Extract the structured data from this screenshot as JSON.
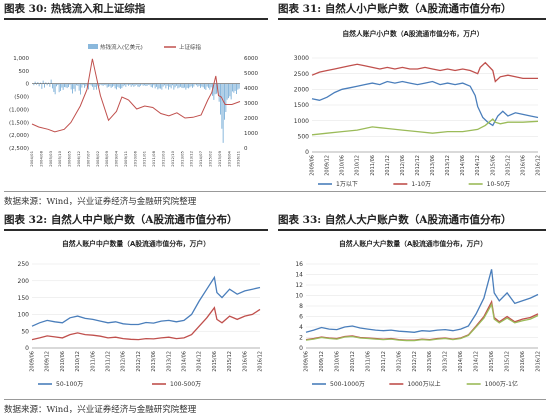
{
  "figures": [
    {
      "label": "图表 30:",
      "title": "热钱流入和上证综指"
    },
    {
      "label": "图表 31:",
      "title": "自然人小户账户数（A股流通市值分布）"
    },
    {
      "label": "图表 32:",
      "title": "自然人中户账户数（A股流通市值分布）"
    },
    {
      "label": "图表 33:",
      "title": "自然人大户账户数（A股流通市值分布）"
    }
  ],
  "sources": [
    "数据来源：Wind，兴业证券经济与金融研究院整理",
    "数据来源：Wind，兴业证券经济与金融研究院整理"
  ],
  "chart_data": [
    {
      "type": "bar",
      "title": "",
      "legend_position": "top-center",
      "y_left_ticks": [
        "1,000",
        "500",
        "0",
        "(500)",
        "(1,000)",
        "(1,500)",
        "(2,000)",
        "(2,500)"
      ],
      "y_right_ticks": [
        "6000",
        "5000",
        "4000",
        "3000",
        "2000",
        "1000",
        "0"
      ],
      "ylim_left": [
        -2500,
        1000
      ],
      "ylim_right": [
        0,
        6000
      ],
      "x_start": "2004/01",
      "x_end": "2016/12",
      "x_ticks": [
        "2004/01",
        "2004/08",
        "2005/03",
        "2005/10",
        "2006/05",
        "2006/12",
        "2007/07",
        "2008/02",
        "2008/09",
        "2009/04",
        "2009/11",
        "2010/06",
        "2011/01",
        "2011/08",
        "2012/03",
        "2012/10",
        "2013/05",
        "2013/12",
        "2014/07",
        "2015/02",
        "2015/09",
        "2016/04",
        "2016/11"
      ],
      "series": [
        {
          "name": "热钱流入(亿美元)",
          "kind": "bar",
          "axis": "left",
          "color": "#8ab8dc",
          "values": [
            0,
            -60,
            80,
            -40,
            60,
            -100,
            40,
            -200,
            120,
            -150,
            50,
            -60,
            40,
            -120,
            160,
            -180,
            -320,
            -410,
            -100,
            -50,
            -330,
            -280,
            -150,
            -240,
            -130,
            -140,
            -170,
            -130,
            -40,
            -220,
            -380,
            -200,
            -300,
            -60,
            -80,
            -270,
            -420,
            -150,
            -50,
            -160,
            -100,
            -60,
            -220,
            -30,
            -70,
            -120,
            -240,
            -130,
            -230,
            -70,
            -100,
            -30,
            -60,
            -80,
            -40,
            -60,
            -150,
            -120,
            -100,
            -160,
            -120,
            -80,
            -180,
            -220,
            -120,
            -160,
            -200,
            -170,
            -100,
            -60,
            -120,
            -40,
            -80,
            -50,
            -120,
            -60,
            -120,
            -80,
            -40,
            -110,
            -130,
            -80,
            -40,
            -80,
            -60,
            -90,
            -80,
            -40,
            -60,
            -130,
            -150,
            -60,
            -180,
            -120,
            -220,
            -180,
            -190,
            -230,
            -110,
            -60,
            -180,
            -80,
            -230,
            -120,
            -180,
            -60,
            -230,
            -140,
            -80,
            -180,
            -150,
            -120,
            -160,
            -170,
            -150,
            -230,
            -160,
            -180,
            -140,
            -100,
            -160,
            -110,
            -30,
            -60,
            -120,
            -80,
            -160,
            -110,
            -140,
            -200,
            -240,
            -110,
            -160,
            -230,
            -140,
            -470,
            -630,
            -410,
            -390,
            -350,
            -700,
            -1200,
            -1750,
            -2300,
            -1400,
            -1100,
            -620,
            -560,
            -490,
            -610,
            -300,
            -350,
            -280,
            -400,
            -230,
            -190
          ]
        },
        {
          "name": "上证综指",
          "kind": "line",
          "axis": "right",
          "color": "#c0504d",
          "x": [
            "2004/01",
            "2004/06",
            "2005/01",
            "2005/06",
            "2006/01",
            "2006/06",
            "2007/01",
            "2007/06",
            "2007/10",
            "2008/04",
            "2008/10",
            "2009/04",
            "2009/08",
            "2010/01",
            "2010/07",
            "2011/01",
            "2011/07",
            "2012/01",
            "2012/07",
            "2013/01",
            "2013/07",
            "2014/01",
            "2014/07",
            "2014/12",
            "2015/03",
            "2015/06",
            "2015/08",
            "2015/10",
            "2016/01",
            "2016/06",
            "2016/12"
          ],
          "values": [
            1600,
            1400,
            1250,
            1080,
            1250,
            1700,
            2800,
            3900,
            5950,
            3500,
            1850,
            2450,
            3400,
            3200,
            2600,
            2800,
            2700,
            2300,
            2150,
            2350,
            2000,
            2050,
            2200,
            3200,
            3700,
            4800,
            3500,
            3400,
            2900,
            2900,
            3100
          ]
        }
      ]
    },
    {
      "type": "line",
      "title": "自然人账户小户数（A股流通市值分布，万户）",
      "legend_position": "bottom",
      "ylim": [
        0,
        3000
      ],
      "y_ticks": [
        "3000",
        "2500",
        "2000",
        "1500",
        "1000",
        "500",
        "0"
      ],
      "x_start": "2009/06",
      "x_end": "2016/12",
      "x_ticks": [
        "2009/06",
        "2009/12",
        "2010/06",
        "2010/12",
        "2011/06",
        "2011/12",
        "2012/06",
        "2012/12",
        "2013/06",
        "2013/12",
        "2014/06",
        "2014/12",
        "2015/06",
        "2015/12",
        "2016/06",
        "2016/12"
      ],
      "series": [
        {
          "name": "1万以下",
          "color": "#4a7ebb",
          "x": [
            "2009/06",
            "2009/09",
            "2009/12",
            "2010/03",
            "2010/06",
            "2010/09",
            "2010/12",
            "2011/03",
            "2011/06",
            "2011/09",
            "2011/12",
            "2012/03",
            "2012/06",
            "2012/09",
            "2012/12",
            "2013/03",
            "2013/06",
            "2013/09",
            "2013/12",
            "2014/03",
            "2014/06",
            "2014/09",
            "2014/11",
            "2014/12",
            "2015/02",
            "2015/04",
            "2015/06",
            "2015/08",
            "2015/10",
            "2015/12",
            "2016/03",
            "2016/06",
            "2016/09",
            "2016/12"
          ],
          "values": [
            1700,
            1650,
            1750,
            1900,
            2000,
            2050,
            2100,
            2150,
            2200,
            2150,
            2250,
            2200,
            2250,
            2200,
            2150,
            2200,
            2250,
            2150,
            2200,
            2150,
            2200,
            2100,
            1800,
            1450,
            1100,
            950,
            850,
            1150,
            1300,
            1150,
            1250,
            1200,
            1150,
            1100
          ]
        },
        {
          "name": "1-10万",
          "color": "#c0504d",
          "x": [
            "2009/06",
            "2009/09",
            "2009/12",
            "2010/03",
            "2010/06",
            "2010/09",
            "2010/12",
            "2011/03",
            "2011/06",
            "2011/09",
            "2011/12",
            "2012/03",
            "2012/06",
            "2012/09",
            "2012/12",
            "2013/03",
            "2013/06",
            "2013/09",
            "2013/12",
            "2014/03",
            "2014/06",
            "2014/09",
            "2014/12",
            "2015/01",
            "2015/03",
            "2015/06",
            "2015/07",
            "2015/09",
            "2015/12",
            "2016/03",
            "2016/06",
            "2016/09",
            "2016/12"
          ],
          "values": [
            2450,
            2550,
            2600,
            2650,
            2700,
            2750,
            2800,
            2750,
            2700,
            2650,
            2700,
            2650,
            2700,
            2650,
            2650,
            2700,
            2650,
            2600,
            2650,
            2600,
            2650,
            2600,
            2500,
            2700,
            2850,
            2600,
            2250,
            2400,
            2450,
            2400,
            2350,
            2350,
            2350
          ]
        },
        {
          "name": "10-50万",
          "color": "#9bbb59",
          "x": [
            "2009/06",
            "2009/12",
            "2010/06",
            "2010/12",
            "2011/06",
            "2011/12",
            "2012/06",
            "2012/12",
            "2013/06",
            "2013/12",
            "2014/06",
            "2014/12",
            "2015/03",
            "2015/06",
            "2015/07",
            "2015/09",
            "2015/12",
            "2016/06",
            "2016/12"
          ],
          "values": [
            550,
            600,
            650,
            700,
            800,
            750,
            700,
            650,
            600,
            650,
            650,
            720,
            850,
            1050,
            950,
            900,
            950,
            950,
            980
          ]
        }
      ]
    },
    {
      "type": "line",
      "title": "自然人账户中户数量（A股流通市值分布，万户）",
      "legend_position": "bottom",
      "ylim": [
        0,
        250
      ],
      "y_ticks": [
        "250",
        "200",
        "150",
        "100",
        "50",
        "0"
      ],
      "x_start": "2009/06",
      "x_end": "2016/12",
      "x_ticks": [
        "2009/06",
        "2009/12",
        "2010/06",
        "2010/12",
        "2011/06",
        "2011/12",
        "2012/06",
        "2012/12",
        "2013/06",
        "2013/12",
        "2014/06",
        "2014/12",
        "2015/06",
        "2015/12",
        "2016/06",
        "2016/12"
      ],
      "series": [
        {
          "name": "50-100万",
          "color": "#4a7ebb",
          "x": [
            "2009/06",
            "2009/09",
            "2009/12",
            "2010/03",
            "2010/06",
            "2010/09",
            "2010/12",
            "2011/03",
            "2011/06",
            "2011/09",
            "2011/12",
            "2012/03",
            "2012/06",
            "2012/09",
            "2012/12",
            "2013/03",
            "2013/06",
            "2013/09",
            "2013/12",
            "2014/03",
            "2014/06",
            "2014/09",
            "2014/12",
            "2015/03",
            "2015/06",
            "2015/07",
            "2015/09",
            "2015/12",
            "2016/03",
            "2016/06",
            "2016/09",
            "2016/12"
          ],
          "values": [
            65,
            75,
            82,
            78,
            75,
            90,
            95,
            88,
            85,
            80,
            75,
            78,
            72,
            70,
            70,
            76,
            74,
            80,
            82,
            78,
            82,
            100,
            140,
            175,
            210,
            165,
            150,
            175,
            160,
            170,
            175,
            180
          ]
        },
        {
          "name": "100-500万",
          "color": "#c0504d",
          "x": [
            "2009/06",
            "2009/09",
            "2009/12",
            "2010/03",
            "2010/06",
            "2010/09",
            "2010/12",
            "2011/03",
            "2011/06",
            "2011/09",
            "2011/12",
            "2012/03",
            "2012/06",
            "2012/09",
            "2012/12",
            "2013/03",
            "2013/06",
            "2013/09",
            "2013/12",
            "2014/03",
            "2014/06",
            "2014/09",
            "2014/12",
            "2015/03",
            "2015/06",
            "2015/07",
            "2015/09",
            "2015/12",
            "2016/03",
            "2016/06",
            "2016/09",
            "2016/12"
          ],
          "values": [
            25,
            30,
            36,
            33,
            30,
            40,
            45,
            40,
            38,
            35,
            30,
            32,
            28,
            26,
            25,
            28,
            27,
            30,
            32,
            28,
            30,
            40,
            65,
            90,
            120,
            85,
            75,
            95,
            85,
            95,
            100,
            115
          ]
        }
      ]
    },
    {
      "type": "line",
      "title": "自然人账户大户数量（A股流通市值分布，万户）",
      "legend_position": "bottom",
      "ylim": [
        0,
        16
      ],
      "y_ticks": [
        "16",
        "14",
        "12",
        "10",
        "8",
        "6",
        "4",
        "2",
        "0"
      ],
      "x_start": "2009/06",
      "x_end": "2016/12",
      "x_ticks": [
        "2009/06",
        "2009/12",
        "2010/06",
        "2010/12",
        "2011/06",
        "2011/12",
        "2012/06",
        "2012/12",
        "2013/06",
        "2013/12",
        "2014/06",
        "2014/12",
        "2015/06",
        "2015/12",
        "2016/06",
        "2016/12"
      ],
      "series": [
        {
          "name": "500-1000万",
          "color": "#4a7ebb",
          "x": [
            "2009/06",
            "2009/09",
            "2009/12",
            "2010/03",
            "2010/06",
            "2010/09",
            "2010/12",
            "2011/03",
            "2011/06",
            "2011/09",
            "2011/12",
            "2012/03",
            "2012/06",
            "2012/09",
            "2012/12",
            "2013/03",
            "2013/06",
            "2013/09",
            "2013/12",
            "2014/03",
            "2014/06",
            "2014/09",
            "2014/12",
            "2015/03",
            "2015/06",
            "2015/07",
            "2015/09",
            "2015/12",
            "2016/03",
            "2016/06",
            "2016/09",
            "2016/12"
          ],
          "values": [
            3.0,
            3.4,
            3.9,
            3.6,
            3.5,
            4.0,
            4.2,
            3.8,
            3.6,
            3.4,
            3.3,
            3.4,
            3.2,
            3.1,
            3.0,
            3.3,
            3.2,
            3.4,
            3.5,
            3.3,
            3.6,
            4.2,
            6.5,
            9.5,
            15.0,
            10.5,
            9.0,
            10.5,
            8.5,
            9.0,
            9.5,
            10.2
          ]
        },
        {
          "name": "1000万以上",
          "color": "#c0504d",
          "x": [
            "2009/06",
            "2009/09",
            "2009/12",
            "2010/03",
            "2010/06",
            "2010/09",
            "2010/12",
            "2011/03",
            "2011/06",
            "2011/09",
            "2011/12",
            "2012/03",
            "2012/06",
            "2012/09",
            "2012/12",
            "2013/03",
            "2013/06",
            "2013/09",
            "2013/12",
            "2014/03",
            "2014/06",
            "2014/09",
            "2014/12",
            "2015/03",
            "2015/06",
            "2015/07",
            "2015/09",
            "2015/12",
            "2016/03",
            "2016/06",
            "2016/09",
            "2016/12"
          ],
          "values": [
            1.6,
            1.8,
            2.1,
            1.9,
            1.8,
            2.2,
            2.3,
            2.0,
            1.9,
            1.8,
            1.7,
            1.8,
            1.6,
            1.5,
            1.5,
            1.7,
            1.6,
            1.8,
            1.9,
            1.7,
            1.9,
            2.5,
            4.2,
            6.0,
            8.8,
            5.8,
            5.0,
            6.0,
            5.0,
            5.5,
            5.8,
            6.5
          ]
        },
        {
          "name": "1000万-1亿",
          "color": "#9bbb59",
          "x": [
            "2009/06",
            "2009/09",
            "2009/12",
            "2010/03",
            "2010/06",
            "2010/09",
            "2010/12",
            "2011/03",
            "2011/06",
            "2011/09",
            "2011/12",
            "2012/03",
            "2012/06",
            "2012/09",
            "2012/12",
            "2013/03",
            "2013/06",
            "2013/09",
            "2013/12",
            "2014/03",
            "2014/06",
            "2014/09",
            "2014/12",
            "2015/03",
            "2015/06",
            "2015/07",
            "2015/09",
            "2015/12",
            "2016/03",
            "2016/06",
            "2016/09",
            "2016/12"
          ],
          "values": [
            1.5,
            1.7,
            2.0,
            1.8,
            1.7,
            2.1,
            2.2,
            1.9,
            1.8,
            1.7,
            1.6,
            1.7,
            1.5,
            1.4,
            1.4,
            1.6,
            1.5,
            1.7,
            1.8,
            1.6,
            1.8,
            2.4,
            4.0,
            5.7,
            8.3,
            5.5,
            4.8,
            5.7,
            4.8,
            5.2,
            5.5,
            6.2
          ]
        }
      ]
    }
  ]
}
